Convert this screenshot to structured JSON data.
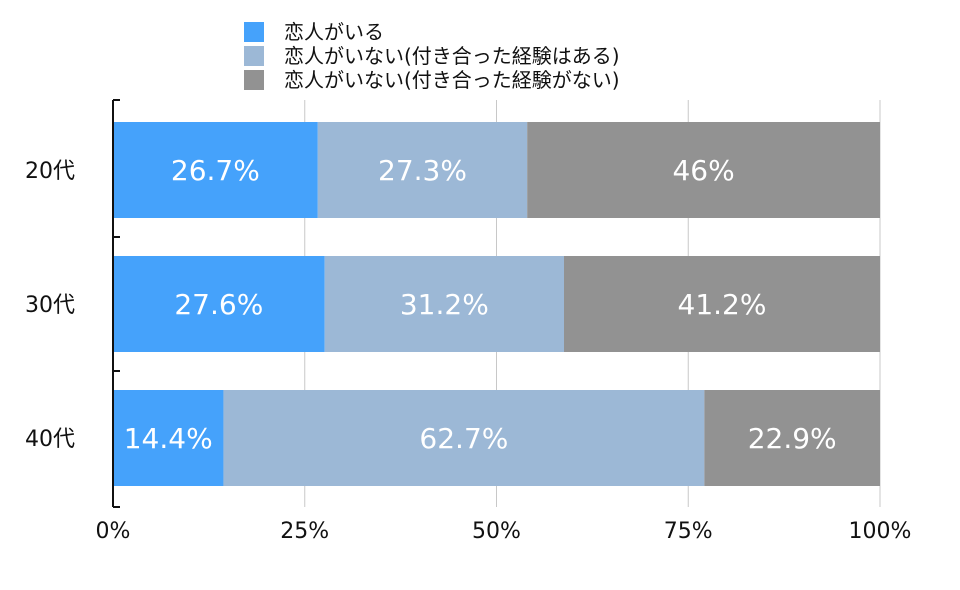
{
  "chart_data": {
    "type": "bar",
    "orientation": "horizontal",
    "stacked": true,
    "categories": [
      "20代",
      "30代",
      "40代"
    ],
    "series": [
      {
        "name": "恋人がいる",
        "values": [
          26.7,
          27.6,
          14.4
        ],
        "labels": [
          "26.7%",
          "27.6%",
          "14.4%"
        ],
        "color": "#45a2fb"
      },
      {
        "name": "恋人がいない(付き合った経験はある)",
        "values": [
          27.3,
          31.2,
          62.7
        ],
        "labels": [
          "27.3%",
          "31.2%",
          "62.7%"
        ],
        "color": "#9cb8d6"
      },
      {
        "name": "恋人がいない(付き合った経験がない)",
        "values": [
          46,
          41.2,
          22.9
        ],
        "labels": [
          "46%",
          "41.2%",
          "22.9%"
        ],
        "color": "#929292"
      }
    ],
    "xlim": [
      0,
      100
    ],
    "x_ticks": [
      "0%",
      "25%",
      "50%",
      "75%",
      "100%"
    ],
    "title": "",
    "xlabel": "",
    "ylabel": "",
    "grid": "vertical",
    "legend_position": "top-center"
  }
}
